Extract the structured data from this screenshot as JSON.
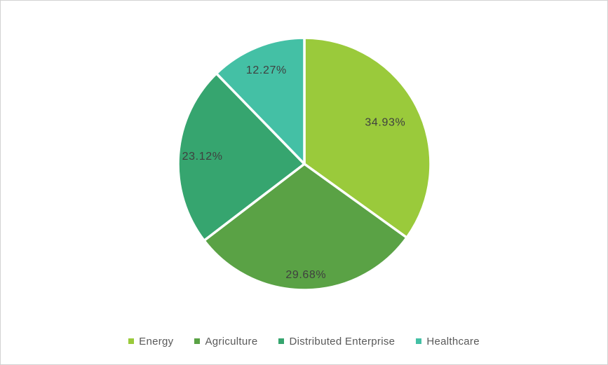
{
  "frame": {
    "background_color": "#FFFFFF",
    "border_color": "#D2D2D2"
  },
  "chart_data": {
    "type": "pie",
    "title": "",
    "categories": [
      "Energy",
      "Agriculture",
      "Distributed Enterprise",
      "Healthcare"
    ],
    "values": [
      34.93,
      29.68,
      23.12,
      12.27
    ],
    "labels": [
      "34.93%",
      "29.68%",
      "23.12%",
      "12.27%"
    ],
    "colors": [
      "#9ACA3B",
      "#5AA245",
      "#36A56F",
      "#44C0A5"
    ],
    "start_angle_deg": 0,
    "direction": "clockwise",
    "slice_border_color": "#FFFFFF",
    "data_label_color": "#3F3F3F",
    "legend": {
      "position": "bottom",
      "entries": [
        "Energy",
        "Agriculture",
        "Distributed Enterprise",
        "Healthcare"
      ],
      "text_color": "#595959"
    }
  }
}
